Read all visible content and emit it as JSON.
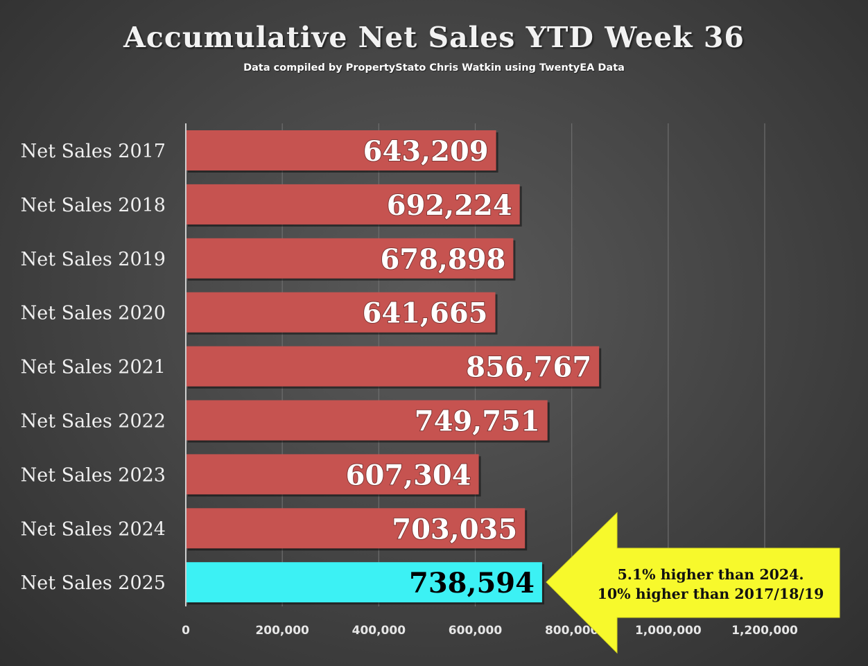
{
  "header": {
    "title": "Accumulative Net Sales YTD Week 36",
    "subtitle": "Data compiled by PropertyStato Chris Watkin using TwentyEA Data"
  },
  "chart_data": {
    "type": "bar",
    "orientation": "horizontal",
    "title": "Accumulative Net Sales YTD Week 36",
    "subtitle": "Data compiled by PropertyStato Chris Watkin using TwentyEA Data",
    "categories": [
      "Net Sales 2017",
      "Net Sales 2018",
      "Net Sales 2019",
      "Net Sales 2020",
      "Net Sales 2021",
      "Net Sales 2022",
      "Net Sales 2023",
      "Net Sales 2024",
      "Net Sales 2025"
    ],
    "values": [
      643209,
      692224,
      678898,
      641665,
      856767,
      749751,
      607304,
      703035,
      738594
    ],
    "data_labels": [
      "643,209",
      "692,224",
      "678,898",
      "641,665",
      "856,767",
      "749,751",
      "607,304",
      "703,035",
      "738,594"
    ],
    "xlim": [
      0,
      1200000
    ],
    "xticks": [
      0,
      200000,
      400000,
      600000,
      800000,
      1000000,
      1200000
    ],
    "xtick_labels": [
      "0",
      "200,000",
      "400,000",
      "600,000",
      "800,000",
      "1,000,000",
      "1,200,000"
    ],
    "grid": "vertical",
    "colors": {
      "bar": "#c65350",
      "highlight_bar": "#3cf1f4",
      "label_light": "#ffffff",
      "label_dark": "#000000",
      "axis": "#d0d0d0",
      "grid": "#6e6e6e"
    },
    "highlight_index": 8,
    "annotation": {
      "lines": [
        "5.1% higher than 2024.",
        "10% higher than 2017/18/19"
      ],
      "color": "#f7f92c",
      "shape": "left-arrow"
    }
  }
}
